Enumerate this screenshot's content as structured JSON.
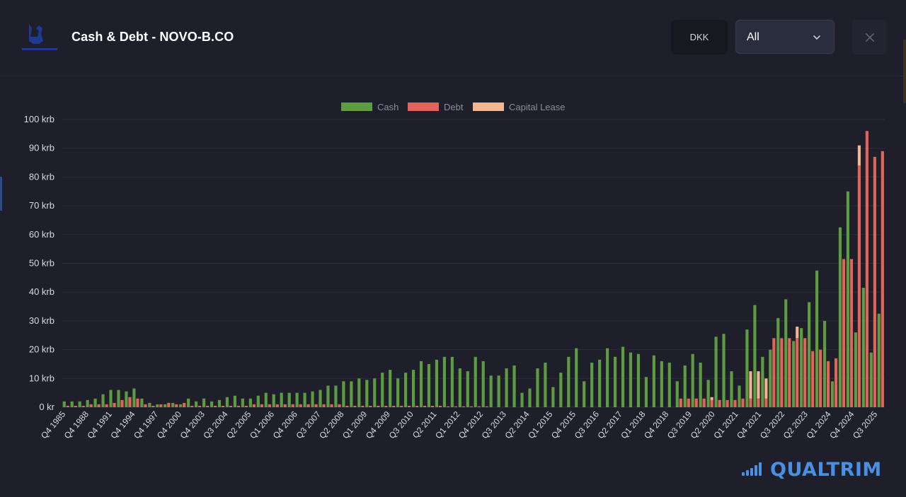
{
  "header": {
    "title": "Cash & Debt - NOVO-B.CO",
    "currency": "DKK",
    "range": "All"
  },
  "colors": {
    "background": "#1e1f2b",
    "cash": "#5e9c42",
    "debt": "#e0645a",
    "capital_lease": "#f2b591",
    "brand": "#4a90e2"
  },
  "brand": {
    "name": "QUALTRIM"
  },
  "chart_data": {
    "type": "bar",
    "title": "",
    "xlabel": "",
    "ylabel": "",
    "ylim": [
      0,
      100
    ],
    "y_unit": "krb",
    "y_ticks": [
      "0 kr",
      "10 krb",
      "20 krb",
      "30 krb",
      "40 krb",
      "50 krb",
      "60 krb",
      "70 krb",
      "80 krb",
      "90 krb",
      "100 krb"
    ],
    "legend": [
      "Cash",
      "Debt",
      "Capital Lease"
    ],
    "legend_position": "top-center",
    "grid": true,
    "x_tick_labels": [
      "Q4 1985",
      "Q4 1988",
      "Q4 1991",
      "Q4 1994",
      "Q4 1997",
      "Q4 2000",
      "Q4 2003",
      "Q3 2004",
      "Q2 2005",
      "Q1 2006",
      "Q4 2006",
      "Q3 2007",
      "Q2 2008",
      "Q1 2009",
      "Q4 2009",
      "Q3 2010",
      "Q2 2011",
      "Q1 2012",
      "Q4 2012",
      "Q3 2013",
      "Q2 2014",
      "Q1 2015",
      "Q4 2015",
      "Q3 2016",
      "Q2 2017",
      "Q1 2018",
      "Q4 2018",
      "Q3 2019",
      "Q2 2020",
      "Q1 2021",
      "Q4 2021",
      "Q3 2022",
      "Q2 2023",
      "Q1 2024",
      "Q4 2024",
      "Q3 2025"
    ],
    "series": [
      {
        "name": "Cash",
        "values": [
          2.0,
          2.0,
          2.0,
          2.5,
          3.0,
          4.5,
          6.0,
          6.0,
          5.5,
          6.5,
          3.0,
          1.5,
          1.0,
          1.0,
          1.5,
          1.0,
          3.0,
          2.0,
          3.0,
          2.0,
          2.5,
          3.5,
          4.0,
          3.0,
          3.0,
          4.0,
          5.0,
          4.5,
          5.0,
          5.0,
          5.0,
          5.0,
          5.5,
          6.0,
          7.5,
          7.5,
          9.0,
          9.0,
          10.0,
          9.5,
          10.0,
          12.0,
          13.0,
          10.0,
          12.0,
          13.0,
          16.0,
          15.0,
          16.5,
          17.5,
          17.5,
          13.5,
          12.5,
          17.5,
          16.0,
          11.0,
          11.0,
          13.5,
          14.5,
          5.0,
          6.5,
          13.5,
          15.5,
          7.0,
          12.0,
          17.5,
          20.5,
          9.0,
          15.5,
          16.5,
          20.5,
          17.5,
          21.0,
          19.0,
          18.5,
          10.5,
          18.0,
          16.0,
          15.5,
          9.0,
          14.5,
          18.5,
          15.5,
          9.5,
          24.5,
          25.5,
          12.5,
          7.5,
          27.0,
          35.5,
          17.5,
          20.0,
          31.0,
          37.5,
          23.0,
          27.5,
          36.5,
          47.5,
          30.0,
          9.0,
          62.5,
          75.0,
          26.0,
          41.5,
          19.0,
          32.5
        ]
      },
      {
        "name": "Debt",
        "values": [
          0.5,
          0.5,
          0.5,
          1.0,
          1.0,
          1.0,
          1.5,
          2.5,
          3.5,
          3.0,
          1.0,
          0.5,
          1.0,
          1.5,
          1.0,
          1.5,
          0.5,
          0.5,
          0.5,
          0.5,
          0.5,
          0.5,
          0.5,
          0.5,
          1.0,
          1.0,
          1.0,
          1.0,
          1.0,
          1.0,
          1.0,
          1.0,
          1.0,
          1.0,
          1.0,
          1.0,
          0.5,
          0.5,
          0.5,
          0.5,
          0.5,
          0.5,
          0.5,
          0.5,
          0.5,
          0.5,
          0.5,
          0.5,
          0.5,
          0.3,
          0.3,
          0.3,
          0.3,
          0.3,
          0.3,
          0.0,
          0.0,
          0.0,
          0.0,
          0.0,
          0.0,
          0.0,
          0.0,
          0.0,
          0.0,
          0.0,
          0.0,
          0.0,
          0.0,
          0.0,
          0.0,
          0.0,
          0.0,
          0.0,
          0.0,
          0.0,
          0.0,
          0.0,
          0.0,
          3.0,
          3.0,
          3.0,
          3.0,
          2.5,
          2.5,
          2.5,
          2.5,
          3.0,
          3.0,
          3.0,
          3.0,
          24.0,
          24.0,
          24.0,
          24.0,
          24.0,
          19.5,
          20.0,
          16.0,
          17.0,
          51.5,
          51.5,
          84.0,
          96.0,
          87.0,
          89.0
        ]
      },
      {
        "name": "Capital Lease",
        "values": [
          0,
          0,
          0,
          0,
          0,
          0,
          0,
          0,
          0,
          0,
          0,
          0,
          0,
          0,
          0,
          0,
          0,
          0,
          0,
          0,
          0,
          0,
          0,
          0,
          0,
          0,
          0,
          0,
          0,
          0,
          0,
          0,
          0,
          0,
          0,
          0,
          0,
          0,
          0,
          0,
          0,
          0,
          0,
          0,
          0,
          0,
          0,
          0,
          0,
          0,
          0,
          0,
          0,
          0,
          0,
          0,
          0,
          0,
          0,
          0,
          0,
          0,
          0,
          0,
          0,
          0,
          0,
          0,
          0,
          0,
          0,
          0,
          0,
          0,
          0,
          0,
          0,
          0,
          0,
          0,
          0,
          0,
          0,
          1.0,
          0,
          0,
          0,
          0,
          9.5,
          9.5,
          7.0,
          0,
          0,
          0,
          4.0,
          0,
          0,
          0,
          0,
          0,
          0,
          0,
          7.0,
          0,
          0,
          0
        ]
      }
    ]
  }
}
